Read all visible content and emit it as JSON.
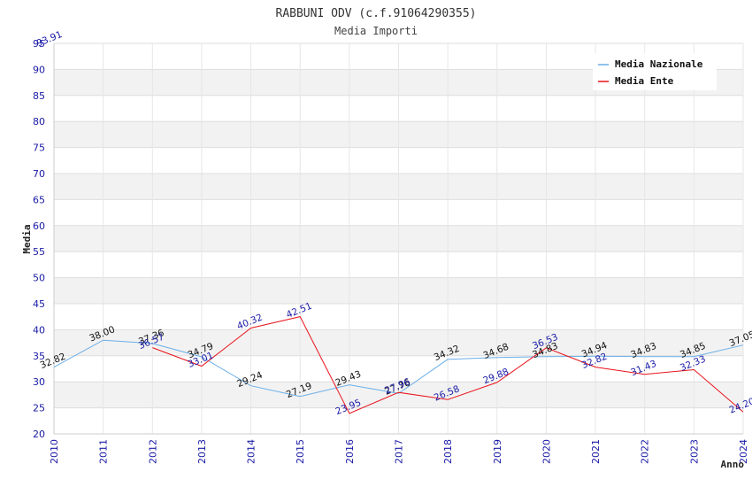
{
  "chart_data": {
    "type": "line",
    "title": "RABBUNI ODV (c.f.91064290355)",
    "subtitle": "Media Importi",
    "xlabel": "Anno",
    "ylabel": "Media",
    "ylim": [
      20,
      95
    ],
    "ytick_step": 5,
    "grid": true,
    "legend_position": "top-right",
    "categories": [
      "2010",
      "2011",
      "2012",
      "2013",
      "2014",
      "2015",
      "2016",
      "2017",
      "2018",
      "2019",
      "2020",
      "2021",
      "2022",
      "2023",
      "2024"
    ],
    "series": [
      {
        "name": "Media Nazionale",
        "color": "#6aaee8",
        "label_color": "#111111",
        "values": [
          32.82,
          38.0,
          37.36,
          34.79,
          29.24,
          27.19,
          29.43,
          27.76,
          34.32,
          34.68,
          34.83,
          34.94,
          34.83,
          34.85,
          37.05
        ],
        "labels": [
          "32.82",
          "38.00",
          "37.36",
          "34.79",
          "29.24",
          "27.19",
          "29.43",
          "27.76",
          "34.32",
          "34.68",
          "34.83",
          "34.94",
          "34.83",
          "34.85",
          "37.05"
        ]
      },
      {
        "name": "Media Ente",
        "color": "#e8141c",
        "label_color": "#1a1aa6",
        "values": [
          null,
          null,
          36.57,
          33.01,
          40.32,
          42.51,
          23.95,
          27.96,
          26.58,
          29.88,
          36.53,
          32.82,
          31.43,
          32.33,
          24.2
        ],
        "labels": [
          null,
          null,
          "36.57",
          "33.01",
          "40.32",
          "42.51",
          "23.95",
          "27.96",
          "26.58",
          "29.88",
          "36.53",
          "32.82",
          "31.43",
          "32.33",
          "24.20"
        ]
      }
    ],
    "annotations": [
      {
        "text": "93.91",
        "color": "#1a1aa6"
      }
    ]
  }
}
